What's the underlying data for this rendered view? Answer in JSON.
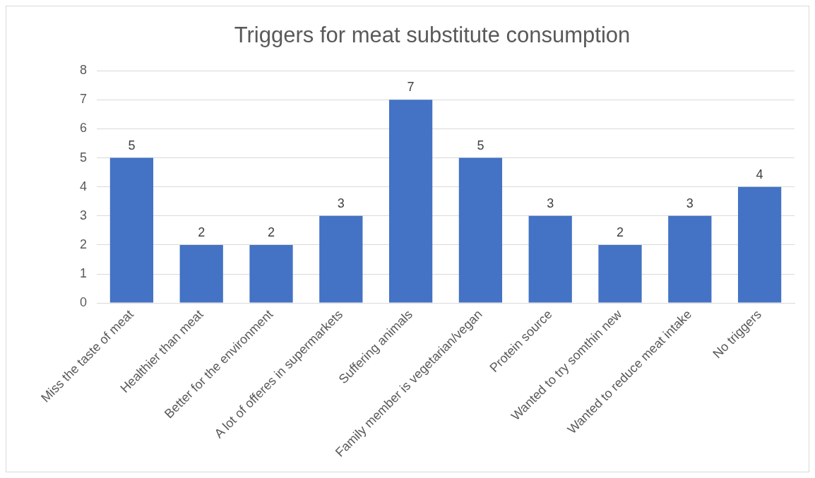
{
  "chart_data": {
    "type": "bar",
    "title": "Triggers for meat substitute consumption",
    "categories": [
      "Miss the taste of meat",
      "Healthier than meat",
      "Better for the environment",
      "A lot of offeres in supermarkets",
      "Suffering animals",
      "Family member is vegetarian/vegan",
      "Protein source",
      "Wanted to try somthin new",
      "Wanted to reduce meat intake",
      "No triggers"
    ],
    "values": [
      5,
      2,
      2,
      3,
      7,
      5,
      3,
      2,
      3,
      4
    ],
    "color": "#4472c4",
    "ylim": [
      0,
      8
    ],
    "yticks": [
      0,
      1,
      2,
      3,
      4,
      5,
      6,
      7,
      8
    ],
    "grid": "y",
    "data_labels": true,
    "legend": false
  }
}
